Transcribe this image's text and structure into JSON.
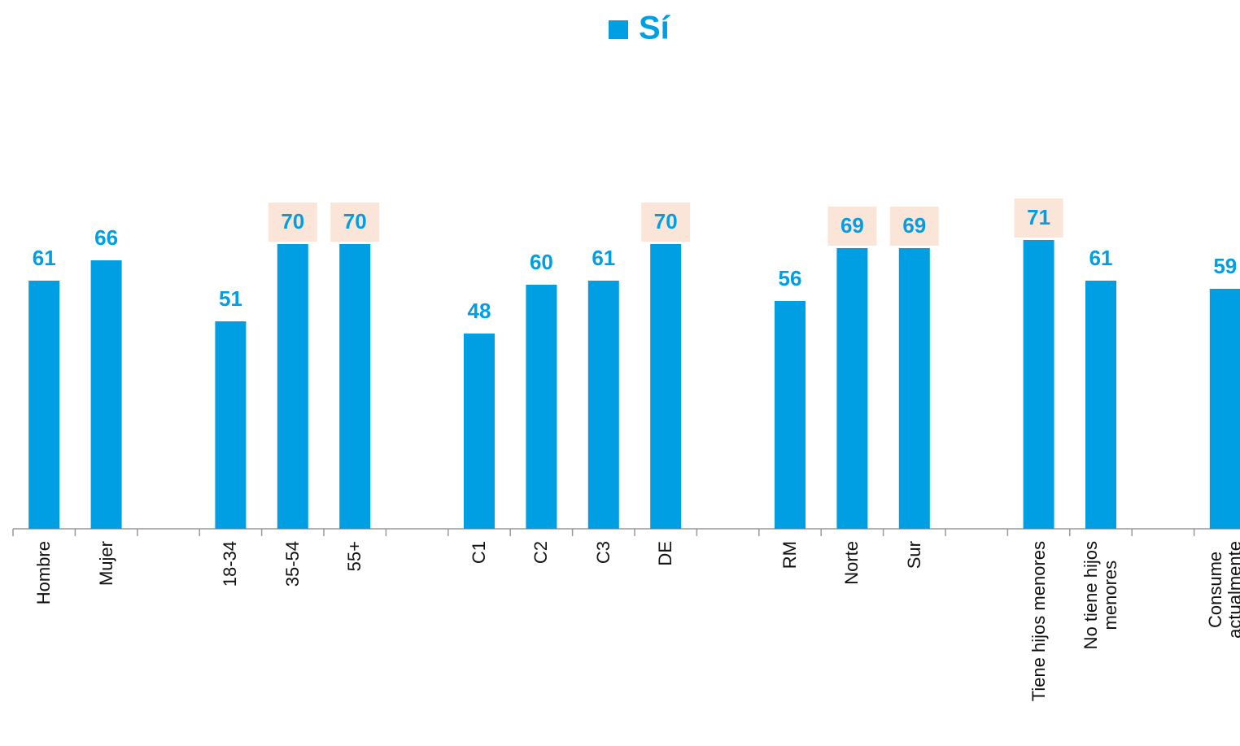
{
  "chart_data": {
    "type": "bar",
    "categories": [
      "Hombre",
      "Mujer",
      null,
      "18-34",
      "35-54",
      "55+",
      null,
      "C1",
      "C2",
      "C3",
      "DE",
      null,
      "RM",
      "Norte",
      "Sur",
      null,
      "Tiene hijos menores",
      "No tiene hijos\nmenores",
      null,
      "Consume\nactualmente"
    ],
    "series": [
      {
        "name": "Sí",
        "color": "#009fe3",
        "values": [
          61,
          66,
          null,
          51,
          70,
          70,
          null,
          48,
          60,
          61,
          70,
          null,
          56,
          69,
          69,
          null,
          71,
          61,
          null,
          59
        ]
      }
    ],
    "highlighted": [
      false,
      false,
      false,
      false,
      true,
      true,
      false,
      false,
      false,
      false,
      true,
      false,
      false,
      true,
      true,
      false,
      true,
      false,
      false,
      false
    ],
    "highlight_color": "#fae5d8",
    "ylim": [
      0,
      130
    ]
  }
}
